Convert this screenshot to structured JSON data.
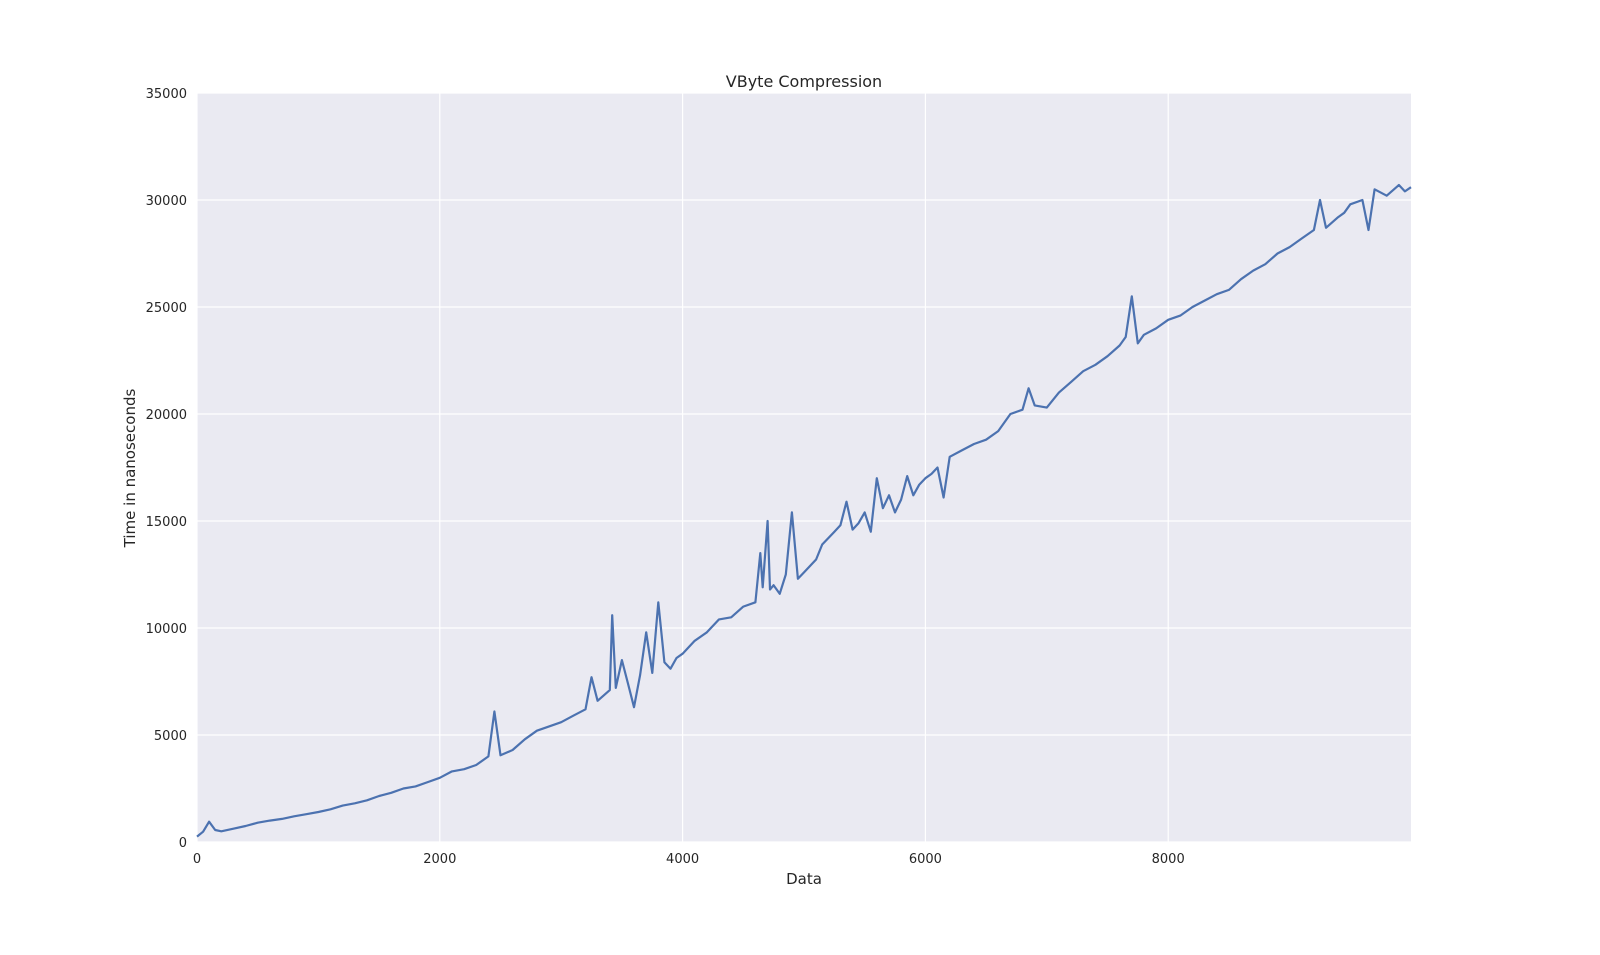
{
  "colors": {
    "plot_background": "#EAEAF2",
    "grid": "#FFFFFF",
    "line": "#4C72B0",
    "text": "#262626"
  },
  "chart_data": {
    "type": "line",
    "title": "VByte Compression",
    "xlabel": "Data",
    "ylabel": "Time in nanoseconds",
    "xlim": [
      0,
      10000
    ],
    "ylim": [
      0,
      35000
    ],
    "xticks": [
      0,
      2000,
      4000,
      6000,
      8000
    ],
    "yticks": [
      0,
      5000,
      10000,
      15000,
      20000,
      25000,
      30000,
      35000
    ],
    "grid": true,
    "legend": "none",
    "series": [
      {
        "x": [
          0,
          50,
          100,
          150,
          200,
          300,
          400,
          500,
          600,
          700,
          800,
          900,
          1000,
          1100,
          1200,
          1300,
          1400,
          1500,
          1600,
          1700,
          1800,
          1900,
          2000,
          2100,
          2200,
          2300,
          2400,
          2450,
          2500,
          2600,
          2700,
          2800,
          2900,
          3000,
          3100,
          3200,
          3250,
          3300,
          3400,
          3420,
          3450,
          3500,
          3550,
          3600,
          3650,
          3700,
          3750,
          3800,
          3850,
          3900,
          3950,
          4000,
          4100,
          4200,
          4300,
          4400,
          4500,
          4600,
          4640,
          4660,
          4700,
          4720,
          4750,
          4800,
          4850,
          4900,
          4950,
          5000,
          5100,
          5150,
          5200,
          5250,
          5300,
          5350,
          5400,
          5450,
          5500,
          5550,
          5600,
          5650,
          5700,
          5750,
          5800,
          5850,
          5900,
          5950,
          6000,
          6050,
          6100,
          6150,
          6200,
          6300,
          6400,
          6500,
          6600,
          6700,
          6800,
          6850,
          6900,
          7000,
          7100,
          7200,
          7300,
          7400,
          7500,
          7600,
          7650,
          7700,
          7750,
          7800,
          7900,
          8000,
          8100,
          8200,
          8300,
          8400,
          8500,
          8600,
          8700,
          8800,
          8900,
          9000,
          9100,
          9200,
          9250,
          9300,
          9400,
          9450,
          9500,
          9600,
          9650,
          9700,
          9800,
          9900,
          9950,
          10000
        ],
        "y": [
          250,
          480,
          950,
          560,
          500,
          620,
          750,
          900,
          1000,
          1080,
          1200,
          1300,
          1400,
          1530,
          1700,
          1810,
          1950,
          2150,
          2300,
          2500,
          2600,
          2800,
          3000,
          3300,
          3400,
          3600,
          4000,
          6100,
          4050,
          4300,
          4800,
          5200,
          5400,
          5600,
          5900,
          6200,
          7700,
          6600,
          7100,
          10600,
          7200,
          8500,
          7400,
          6300,
          7800,
          9800,
          7900,
          11200,
          8400,
          8100,
          8600,
          8800,
          9400,
          9800,
          10400,
          10500,
          11000,
          11200,
          13500,
          11900,
          15000,
          11800,
          12000,
          11600,
          12500,
          15400,
          12300,
          12600,
          13200,
          13900,
          14200,
          14500,
          14800,
          15900,
          14600,
          14900,
          15400,
          14500,
          17000,
          15600,
          16200,
          15400,
          16000,
          17100,
          16200,
          16700,
          17000,
          17200,
          17500,
          16100,
          18000,
          18300,
          18600,
          18800,
          19200,
          20000,
          20200,
          21200,
          20400,
          20300,
          21000,
          21500,
          22000,
          22300,
          22700,
          23200,
          23600,
          25500,
          23300,
          23700,
          24000,
          24400,
          24600,
          25000,
          25300,
          25600,
          25800,
          26300,
          26700,
          27000,
          27500,
          27800,
          28200,
          28600,
          30000,
          28700,
          29200,
          29400,
          29800,
          30000,
          28600,
          30500,
          30200,
          30700,
          30400,
          30600
        ]
      }
    ]
  }
}
